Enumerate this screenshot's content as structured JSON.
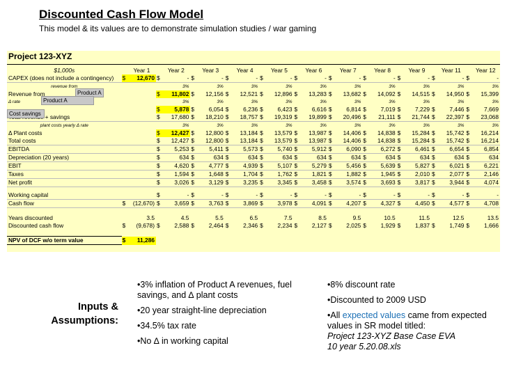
{
  "title": "Discounted Cash Flow Model",
  "subtitle": "This model & its values are to demonstrate simulation studies / war gaming",
  "project": "Project 123-XYZ",
  "units": "$1,000s",
  "years": [
    "Year 1",
    "Year 2",
    "Year 3",
    "Year 4",
    "Year 5",
    "Year 6",
    "Year 7",
    "Year 8",
    "Year 9",
    "Year 11",
    "Year 12"
  ],
  "dollar": "$",
  "capex": {
    "label": "CAPEX (does not include a contingency)",
    "y1": "12,670",
    "dash": "-"
  },
  "rate_label_a": "revenue from",
  "rate_label_a2": "Δ rate",
  "rate_label_b": "plant costs yearly Δ rate",
  "rate_label_c": "Δ rate",
  "pct": "3%",
  "popup": {
    "product_a_1": "Product A",
    "product_a_2": "Product A",
    "cost_savings": "Cost savings"
  },
  "rows": [
    {
      "label": "Revenue from",
      "values": [
        "11,802",
        "12,156",
        "12,521",
        "12,896",
        "13,283",
        "13,682",
        "14,092",
        "14,515",
        "14,950",
        "15,399"
      ]
    },
    {
      "label": "",
      "values": [
        "5,878",
        "6,054",
        "6,236",
        "6,423",
        "6,616",
        "6,814",
        "7,019",
        "7,229",
        "7,446",
        "7,669"
      ]
    },
    {
      "label": "Total revenue + savings",
      "values": [
        "17,680",
        "18,210",
        "18,757",
        "19,319",
        "19,899",
        "20,496",
        "21,111",
        "21,744",
        "22,397",
        "23,068"
      ]
    },
    {
      "label": "Δ Plant costs",
      "values": [
        "12,427",
        "12,800",
        "13,184",
        "13,579",
        "13,987",
        "14,406",
        "14,838",
        "15,284",
        "15,742",
        "16,214"
      ]
    },
    {
      "label": "Total costs",
      "values": [
        "12,427",
        "12,800",
        "13,184",
        "13,579",
        "13,987",
        "14,406",
        "14,838",
        "15,284",
        "15,742",
        "16,214"
      ]
    },
    {
      "label": "EBITDA",
      "values": [
        "5,253",
        "5,411",
        "5,573",
        "5,740",
        "5,912",
        "6,090",
        "6,272",
        "6,461",
        "6,654",
        "6,854"
      ]
    },
    {
      "label": "Depreciation (20 years)",
      "values": [
        "634",
        "634",
        "634",
        "634",
        "634",
        "634",
        "634",
        "634",
        "634",
        "634"
      ]
    },
    {
      "label": "EBIT",
      "values": [
        "4,620",
        "4,777",
        "4,939",
        "5,107",
        "5,279",
        "5,456",
        "5,639",
        "5,827",
        "6,021",
        "6,221"
      ]
    },
    {
      "label": "Taxes",
      "values": [
        "1,594",
        "1,648",
        "1,704",
        "1,762",
        "1,821",
        "1,882",
        "1,945",
        "2,010",
        "2,077",
        "2,146"
      ]
    },
    {
      "label": "Net profit",
      "values": [
        "3,026",
        "3,129",
        "3,235",
        "3,345",
        "3,458",
        "3,574",
        "3,693",
        "3,817",
        "3,944",
        "4,074"
      ]
    }
  ],
  "working_capital": {
    "label": "Working capital",
    "dash": "-"
  },
  "cash_flow": {
    "label": "Cash flow",
    "y1": "(12,670)",
    "values": [
      "3,659",
      "3,763",
      "3,869",
      "3,978",
      "4,091",
      "4,207",
      "4,327",
      "4,450",
      "4,577",
      "4,708"
    ]
  },
  "years_discounted": {
    "label": "Years discounted",
    "values": [
      "3.5",
      "4.5",
      "5.5",
      "6.5",
      "7.5",
      "8.5",
      "9.5",
      "10.5",
      "11.5",
      "12.5",
      "13.5"
    ]
  },
  "dcf": {
    "label": "Discounted cash flow",
    "y1": "(9,678)",
    "values": [
      "2,588",
      "2,464",
      "2,346",
      "2,234",
      "2,127",
      "2,025",
      "1,929",
      "1,837",
      "1,749",
      "1,666"
    ]
  },
  "npv": {
    "label": "NPV of DCF w/o term value",
    "value": "11,286"
  },
  "inputs_title_1": "Inputs &",
  "inputs_title_2": "Assumptions:",
  "bullets_left": [
    "•3% inflation of Product A revenues, fuel savings, and ∆ plant costs",
    "•20 year straight-line depreciation",
    "•34.5% tax rate",
    "•No ∆ in working capital"
  ],
  "bullets_right": {
    "b1": "•8% discount rate",
    "b2": "•Discounted to 2009 USD",
    "b3_pre": "•All ",
    "b3_link": "expected values",
    "b3_post": " came from expected values in SR model titled:",
    "b3_ital_1": "Project 123-XYZ Base Case EVA",
    "b3_ital_2": "10 year 5.20.08.xls"
  },
  "colors": {
    "sheet_bg": "#ffffc4",
    "highlight": "#ffff00",
    "blue_text": "#1a6fb5"
  }
}
